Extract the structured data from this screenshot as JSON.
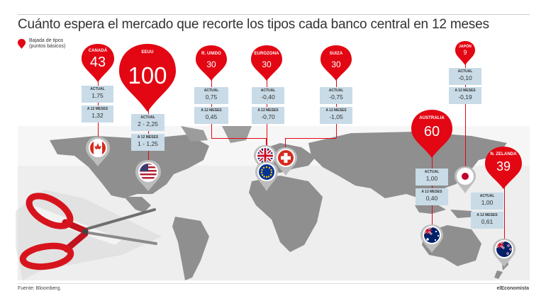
{
  "header": {
    "title": "Cuánto espera el mercado que recorte los tipos cada banco central en 12 meses",
    "legend_label": "Bajada de tipos (puntos básicos)"
  },
  "labels": {
    "actual": "ACTUAL",
    "a12": "A 12 MESES"
  },
  "banks": [
    {
      "id": "canada",
      "name": "CANADÁ",
      "cut": "43",
      "actual": "1,75",
      "in_12m": "1,32",
      "flag_icon": "canada-flag"
    },
    {
      "id": "usa",
      "name": "EEUU",
      "cut": "100",
      "actual": "2 - 2,25",
      "in_12m": "1 - 1,25",
      "flag_icon": "usa-flag"
    },
    {
      "id": "uk",
      "name": "R. UNIDO",
      "cut": "30",
      "actual": "0,75",
      "in_12m": "0,45",
      "flag_icon": "uk-flag"
    },
    {
      "id": "eurozone",
      "name": "EUROZONA",
      "cut": "30",
      "actual": "-0,40",
      "in_12m": "-0,70",
      "flag_icon": "eu-flag"
    },
    {
      "id": "switzerland",
      "name": "SUIZA",
      "cut": "30",
      "actual": "-0,75",
      "in_12m": "-1,05",
      "flag_icon": "swiss-flag"
    },
    {
      "id": "japan",
      "name": "JAPÓN",
      "cut": "9",
      "actual": "-0,10",
      "in_12m": "-0,19",
      "flag_icon": "japan-flag"
    },
    {
      "id": "australia",
      "name": "AUSTRALIA",
      "cut": "60",
      "actual": "1,00",
      "in_12m": "0,40",
      "flag_icon": "australia-flag"
    },
    {
      "id": "newzealand",
      "name": "N. ZELANDA",
      "cut": "39",
      "actual": "1,00",
      "in_12m": "0,61",
      "flag_icon": "newzealand-flag"
    }
  ],
  "footer": {
    "source": "Fuente: Bloomberg.",
    "brand": "elEconomista"
  },
  "colors": {
    "accent": "#e30613",
    "box": "#c8dbe7",
    "land": "#8f8f8f"
  }
}
